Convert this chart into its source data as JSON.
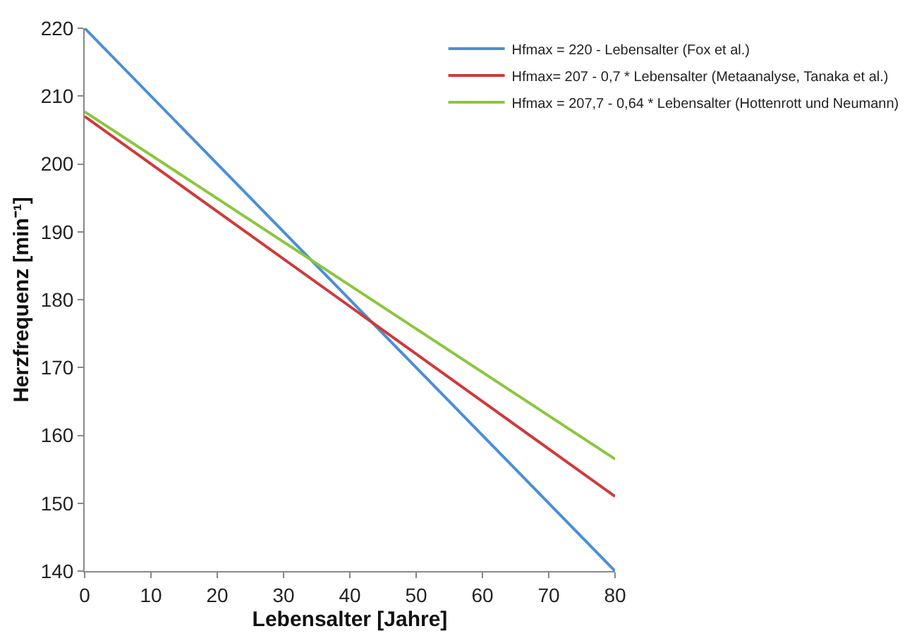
{
  "chart_data": {
    "type": "line",
    "xlabel": "Lebensalter [Jahre]",
    "ylabel": "Herzfrequenz [min⁻¹]",
    "x": [
      0,
      80
    ],
    "series": [
      {
        "name": "Hfmax = 220 - Lebensalter (Fox et al.)",
        "color": "#4a8fd4",
        "values": [
          220,
          140
        ]
      },
      {
        "name": "Hfmax= 207 - 0,7 * Lebensalter (Metaanalyse, Tanaka et al.)",
        "color": "#d0393b",
        "values": [
          207,
          151
        ]
      },
      {
        "name": "Hfmax = 207,7 - 0,64 * Lebensalter (Hottenrott und Neumann)",
        "color": "#8cc63f",
        "values": [
          207.7,
          156.5
        ]
      }
    ],
    "xlim": [
      0,
      80
    ],
    "xticks": [
      0,
      10,
      20,
      30,
      40,
      50,
      60,
      70,
      80
    ],
    "ylim": [
      140,
      220
    ],
    "yticks": [
      140,
      150,
      160,
      170,
      180,
      190,
      200,
      210,
      220
    ],
    "legend": "top right",
    "marker": "none",
    "line_style": "solid"
  }
}
